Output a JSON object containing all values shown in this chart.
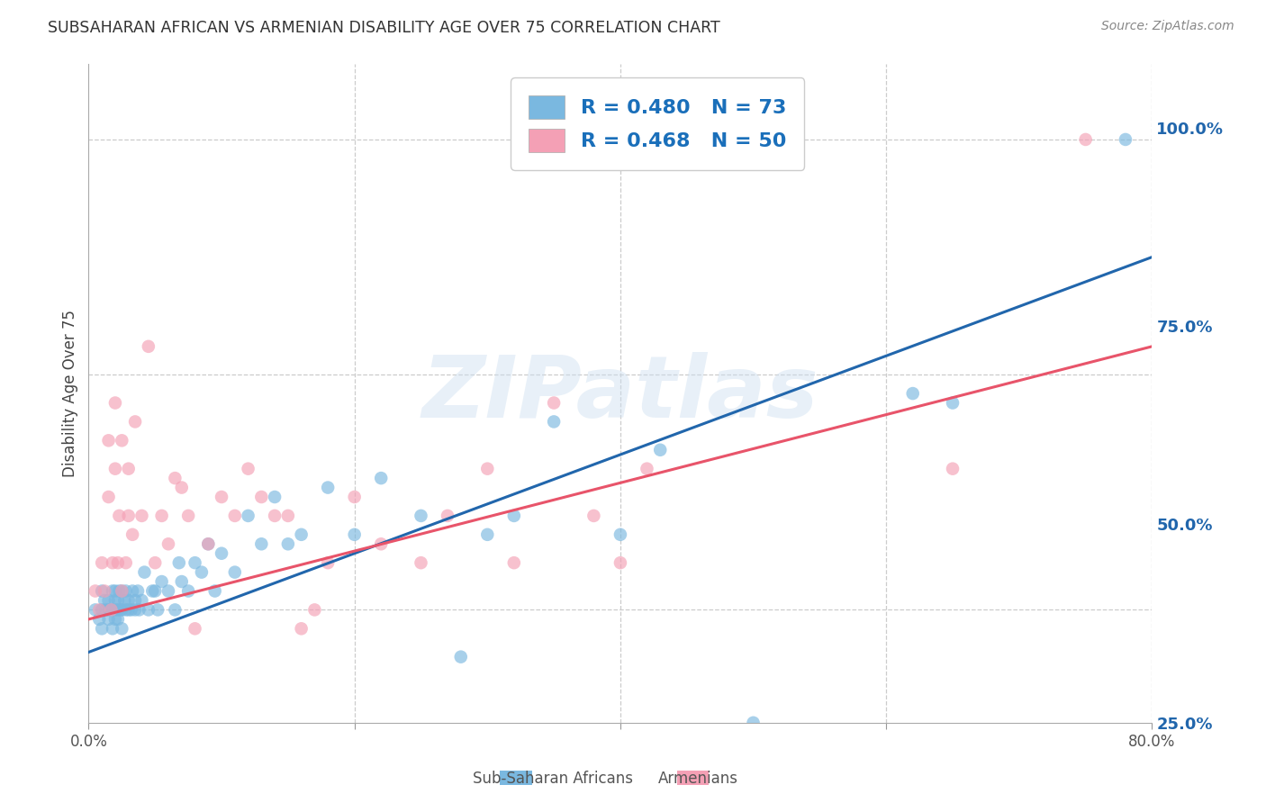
{
  "title": "SUBSAHARAN AFRICAN VS ARMENIAN DISABILITY AGE OVER 75 CORRELATION CHART",
  "source": "Source: ZipAtlas.com",
  "ylabel": "Disability Age Over 75",
  "xmin": 0.0,
  "xmax": 0.8,
  "ymin": 0.38,
  "ymax": 1.08,
  "x_tick_labels": [
    "0.0%",
    "",
    "",
    "",
    "80.0%"
  ],
  "x_tick_vals": [
    0.0,
    0.2,
    0.4,
    0.6,
    0.8
  ],
  "y_tick_labels_right": [
    "25.0%",
    "50.0%",
    "75.0%",
    "100.0%"
  ],
  "y_tick_vals_right": [
    0.25,
    0.5,
    0.75,
    1.0
  ],
  "blue_R": 0.48,
  "blue_N": 73,
  "pink_R": 0.468,
  "pink_N": 50,
  "blue_color": "#7ab8e0",
  "pink_color": "#f4a0b5",
  "blue_line_color": "#2166ac",
  "pink_line_color": "#e8546a",
  "legend_text_color": "#1a6fba",
  "watermark": "ZIPatlas",
  "blue_line_x0": 0.0,
  "blue_line_y0": 0.455,
  "blue_line_x1": 0.8,
  "blue_line_y1": 0.875,
  "pink_line_x0": 0.0,
  "pink_line_y0": 0.49,
  "pink_line_x1": 0.8,
  "pink_line_y1": 0.78,
  "blue_x": [
    0.005,
    0.008,
    0.01,
    0.01,
    0.01,
    0.012,
    0.013,
    0.015,
    0.015,
    0.015,
    0.017,
    0.018,
    0.018,
    0.02,
    0.02,
    0.02,
    0.02,
    0.022,
    0.022,
    0.022,
    0.023,
    0.024,
    0.025,
    0.025,
    0.025,
    0.027,
    0.028,
    0.028,
    0.03,
    0.03,
    0.032,
    0.033,
    0.035,
    0.035,
    0.037,
    0.038,
    0.04,
    0.042,
    0.045,
    0.048,
    0.05,
    0.052,
    0.055,
    0.06,
    0.065,
    0.068,
    0.07,
    0.075,
    0.08,
    0.085,
    0.09,
    0.095,
    0.1,
    0.11,
    0.12,
    0.13,
    0.14,
    0.15,
    0.16,
    0.18,
    0.2,
    0.22,
    0.25,
    0.28,
    0.3,
    0.32,
    0.35,
    0.4,
    0.43,
    0.5,
    0.62,
    0.65,
    0.78
  ],
  "blue_y": [
    0.5,
    0.49,
    0.52,
    0.5,
    0.48,
    0.51,
    0.5,
    0.5,
    0.49,
    0.51,
    0.5,
    0.52,
    0.48,
    0.51,
    0.5,
    0.49,
    0.52,
    0.5,
    0.51,
    0.49,
    0.52,
    0.5,
    0.5,
    0.52,
    0.48,
    0.51,
    0.5,
    0.52,
    0.51,
    0.5,
    0.5,
    0.52,
    0.51,
    0.5,
    0.52,
    0.5,
    0.51,
    0.54,
    0.5,
    0.52,
    0.52,
    0.5,
    0.53,
    0.52,
    0.5,
    0.55,
    0.53,
    0.52,
    0.55,
    0.54,
    0.57,
    0.52,
    0.56,
    0.54,
    0.6,
    0.57,
    0.62,
    0.57,
    0.58,
    0.63,
    0.58,
    0.64,
    0.6,
    0.45,
    0.58,
    0.6,
    0.7,
    0.58,
    0.67,
    0.38,
    0.73,
    0.72,
    1.0
  ],
  "pink_x": [
    0.005,
    0.008,
    0.01,
    0.012,
    0.015,
    0.015,
    0.017,
    0.018,
    0.02,
    0.02,
    0.022,
    0.023,
    0.025,
    0.025,
    0.028,
    0.03,
    0.03,
    0.033,
    0.035,
    0.04,
    0.045,
    0.05,
    0.055,
    0.06,
    0.065,
    0.07,
    0.075,
    0.08,
    0.09,
    0.1,
    0.11,
    0.12,
    0.13,
    0.14,
    0.15,
    0.16,
    0.17,
    0.18,
    0.2,
    0.22,
    0.25,
    0.27,
    0.3,
    0.32,
    0.35,
    0.38,
    0.4,
    0.42,
    0.65,
    0.75
  ],
  "pink_y": [
    0.52,
    0.5,
    0.55,
    0.52,
    0.68,
    0.62,
    0.5,
    0.55,
    0.72,
    0.65,
    0.55,
    0.6,
    0.52,
    0.68,
    0.55,
    0.6,
    0.65,
    0.58,
    0.7,
    0.6,
    0.78,
    0.55,
    0.6,
    0.57,
    0.64,
    0.63,
    0.6,
    0.48,
    0.57,
    0.62,
    0.6,
    0.65,
    0.62,
    0.6,
    0.6,
    0.48,
    0.5,
    0.55,
    0.62,
    0.57,
    0.55,
    0.6,
    0.65,
    0.55,
    0.72,
    0.6,
    0.55,
    0.65,
    0.65,
    1.0
  ]
}
